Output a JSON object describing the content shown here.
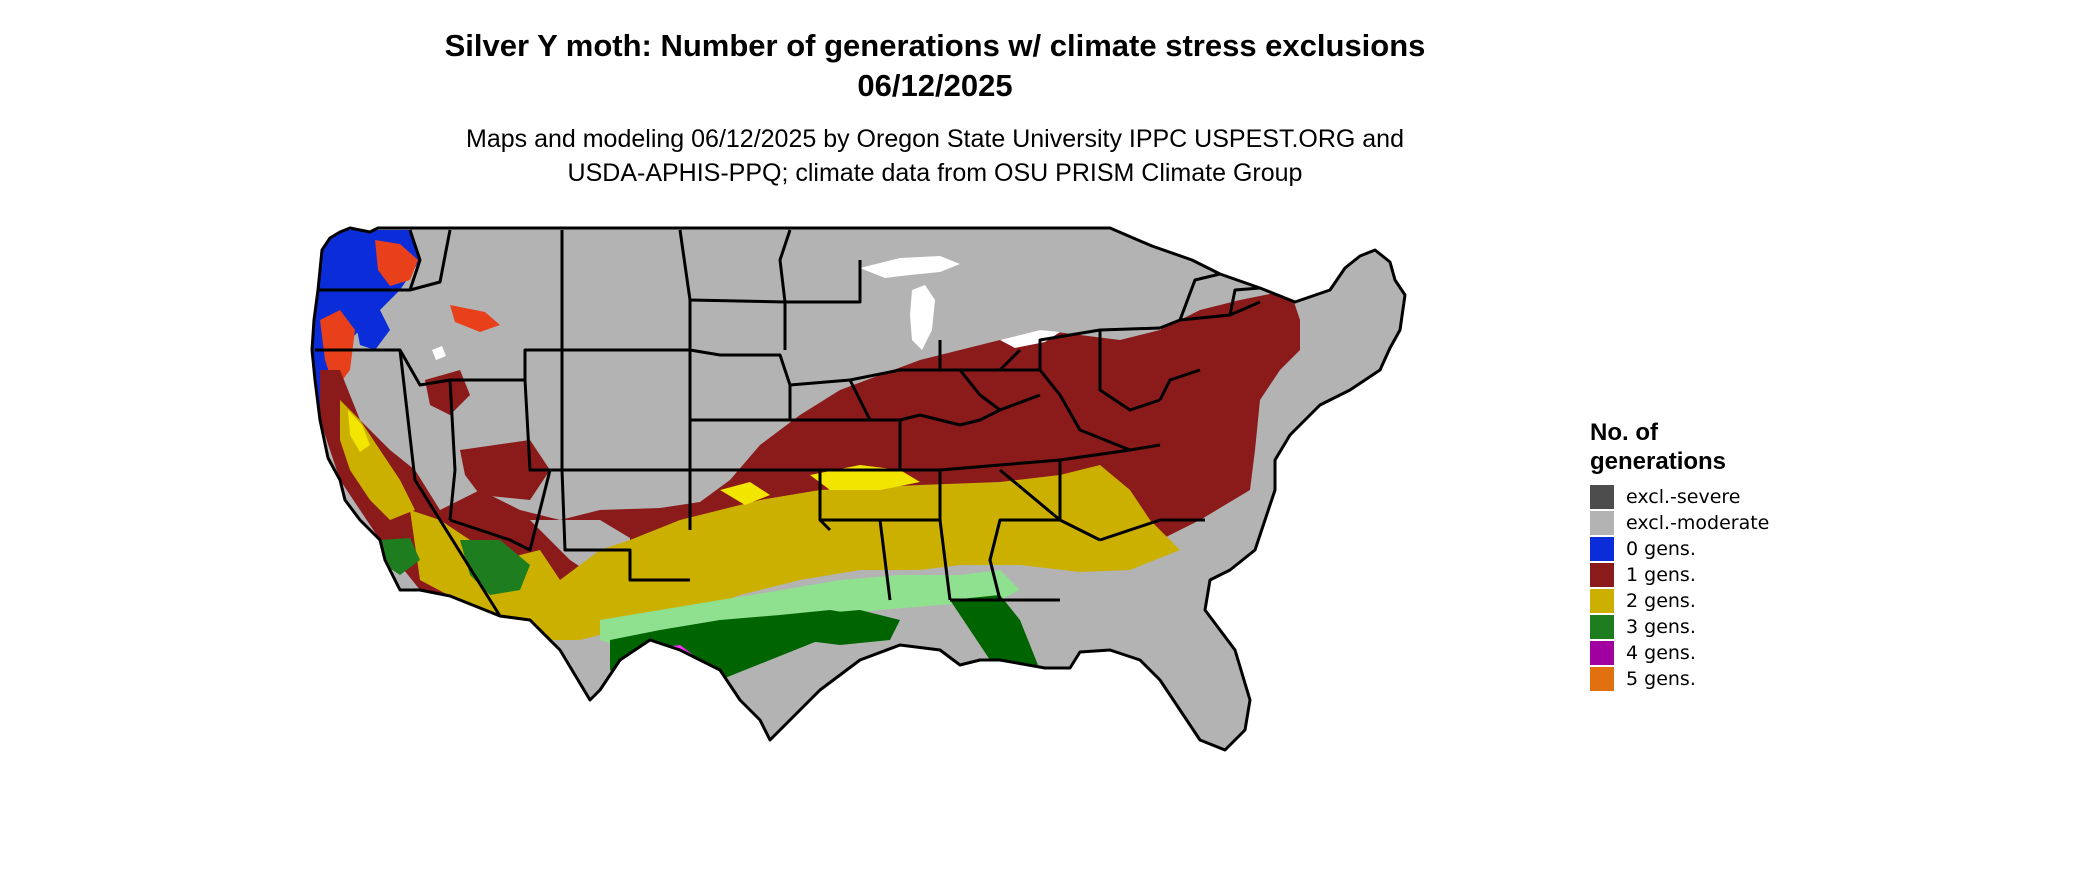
{
  "title": {
    "line1": "Silver Y moth: Number of generations w/ climate stress exclusions",
    "line2": "06/12/2025"
  },
  "subtitle": {
    "line1": "Maps and modeling 06/12/2025 by Oregon State University IPPC USPEST.ORG and",
    "line2": "USDA-APHIS-PPQ; climate data from OSU PRISM Climate Group"
  },
  "legend": {
    "title_line1": "No. of",
    "title_line2": "generations",
    "items": [
      {
        "label": "excl.-severe",
        "color": "#4d4d4d"
      },
      {
        "label": "excl.-moderate",
        "color": "#b3b3b3"
      },
      {
        "label": "0 gens.",
        "color": "#0a2dd9"
      },
      {
        "label": "1 gens.",
        "color": "#8b1a1a"
      },
      {
        "label": "2 gens.",
        "color": "#ccb000"
      },
      {
        "label": "3 gens.",
        "color": "#1e7d1e"
      },
      {
        "label": "4 gens.",
        "color": "#a000a0"
      },
      {
        "label": "5 gens.",
        "color": "#e07010"
      }
    ]
  },
  "map_colors": {
    "background_land": "#b3b3b3",
    "water": "#ffffff",
    "zero_gens": "#0a2dd9",
    "one_gen": "#8b1a1a",
    "one_gen_bright": "#e8401a",
    "two_gens": "#ccb000",
    "two_gens_bright": "#f2e600",
    "three_gens_dark": "#006400",
    "three_gens_light": "#8fe08f",
    "three_gens": "#1e7d1e",
    "four_gens": "#a000a0",
    "four_gens_bright": "#ff2dff",
    "borders": "#000000"
  }
}
